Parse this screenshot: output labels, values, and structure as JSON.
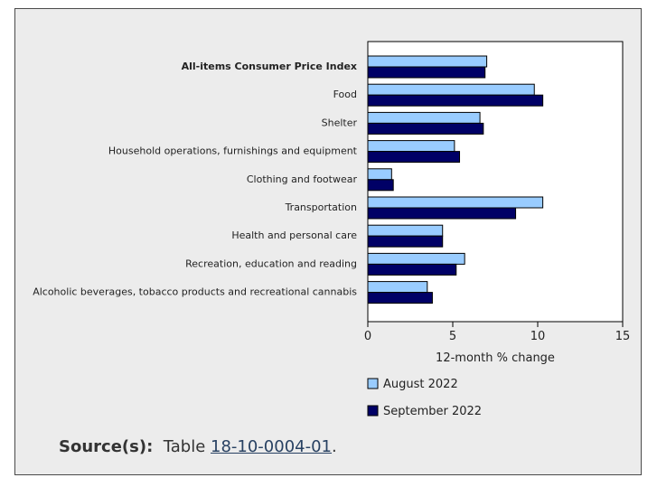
{
  "source": {
    "label": "Source(s):",
    "prefix": "Table",
    "link_text": "18-10-0004-01",
    "suffix": "."
  },
  "colors": {
    "august": "#99ccff",
    "september": "#000066",
    "panel": "#ececec"
  },
  "chart_data": {
    "type": "bar",
    "orientation": "horizontal",
    "categories": [
      "All-items Consumer Price Index",
      "Food",
      "Shelter",
      "Household operations, furnishings and equipment",
      "Clothing and footwear",
      "Transportation",
      "Health and personal care",
      "Recreation, education and reading",
      "Alcoholic beverages, tobacco products and recreational cannabis"
    ],
    "bold_categories": [
      "All-items Consumer Price Index"
    ],
    "series": [
      {
        "name": "August 2022",
        "values": [
          7.0,
          9.8,
          6.6,
          5.1,
          1.4,
          10.3,
          4.4,
          5.7,
          3.5
        ]
      },
      {
        "name": "September 2022",
        "values": [
          6.9,
          10.3,
          6.8,
          5.4,
          1.5,
          8.7,
          4.4,
          5.2,
          3.8
        ]
      }
    ],
    "xlabel": "12-month % change",
    "xlim": [
      0,
      15
    ],
    "xticks": [
      0,
      5,
      10,
      15
    ],
    "legend_position": "bottom",
    "grid": false
  }
}
